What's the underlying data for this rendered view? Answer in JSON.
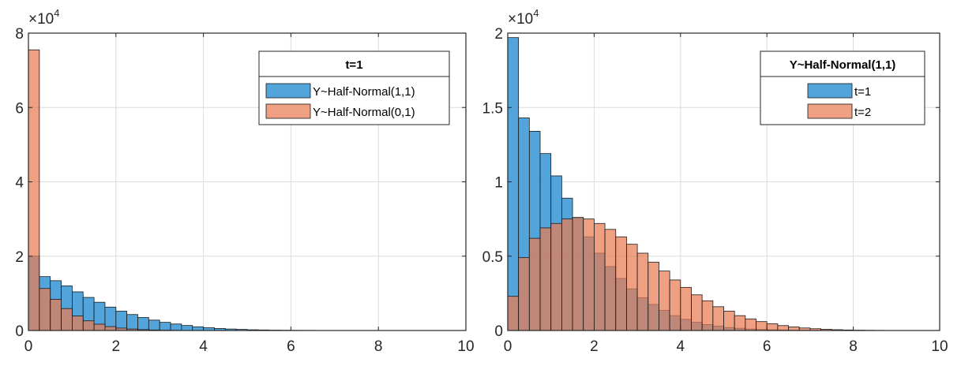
{
  "chart_data": [
    {
      "type": "histogram",
      "exponent_label": "×10",
      "exponent": "4",
      "scale": 10000,
      "xlim": [
        0,
        10
      ],
      "ylim": [
        0,
        80000
      ],
      "xticks": [
        "0",
        "2",
        "4",
        "6",
        "8",
        "10"
      ],
      "yticks": [
        "0",
        "2",
        "4",
        "6",
        "8"
      ],
      "grid": true,
      "legend": {
        "title": "t=1",
        "placement": "top-right"
      },
      "bin_width": 0.25,
      "series": [
        {
          "name": "Y~Half-Normal(1,1)",
          "color": "#4a9fd8",
          "values": [
            20000,
            14500,
            13400,
            12000,
            10400,
            8900,
            7600,
            6300,
            5200,
            4300,
            3500,
            2800,
            2200,
            1750,
            1350,
            1000,
            750,
            550,
            400,
            300,
            200,
            150,
            100,
            70,
            50,
            35,
            25,
            15,
            10,
            8,
            5,
            3,
            2,
            1,
            1,
            1,
            0,
            0,
            0,
            0
          ]
        },
        {
          "name": "Y~Half-Normal(0,1)",
          "color": "#e97c52",
          "values": [
            75500,
            11300,
            8400,
            5900,
            3900,
            2600,
            1700,
            1050,
            650,
            400,
            240,
            140,
            80,
            45,
            25,
            14,
            8,
            4,
            2,
            1,
            1,
            0,
            0,
            0,
            0,
            0,
            0,
            0,
            0,
            0,
            0,
            0,
            0,
            0,
            0,
            0,
            0,
            0,
            0,
            0
          ]
        }
      ]
    },
    {
      "type": "histogram",
      "exponent_label": "×10",
      "exponent": "4",
      "scale": 10000,
      "xlim": [
        0,
        10
      ],
      "ylim": [
        0,
        20000
      ],
      "xticks": [
        "0",
        "2",
        "4",
        "6",
        "8",
        "10"
      ],
      "yticks": [
        "0",
        "0.5",
        "1",
        "1.5",
        "2"
      ],
      "grid": true,
      "legend": {
        "title": "Y~Half-Normal(1,1)",
        "placement": "top-right"
      },
      "bin_width": 0.25,
      "series": [
        {
          "name": "t=1",
          "color": "#4a9fd8",
          "values": [
            19700,
            14300,
            13400,
            11900,
            10400,
            8900,
            7600,
            6300,
            5200,
            4300,
            3500,
            2800,
            2200,
            1750,
            1350,
            1000,
            750,
            550,
            400,
            300,
            200,
            150,
            100,
            70,
            50,
            35,
            25,
            15,
            10,
            8,
            5,
            3,
            2,
            1,
            1,
            1,
            0,
            0,
            0,
            0
          ]
        },
        {
          "name": "t=2",
          "color": "#e97c52",
          "values": [
            2300,
            4900,
            6200,
            6900,
            7200,
            7500,
            7600,
            7500,
            7200,
            6800,
            6300,
            5800,
            5200,
            4600,
            4000,
            3400,
            2900,
            2400,
            2000,
            1600,
            1300,
            1000,
            780,
            600,
            450,
            330,
            240,
            170,
            120,
            80,
            55,
            35,
            22,
            14,
            9,
            5,
            3,
            2,
            1,
            1
          ]
        }
      ]
    }
  ]
}
